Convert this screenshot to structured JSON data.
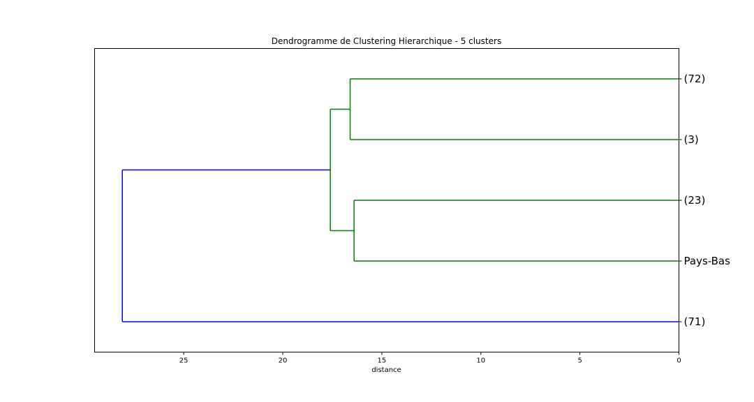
{
  "chart_data": {
    "type": "dendrogram",
    "title": "Dendrogramme de Clustering Hierarchique - 5 clusters",
    "xlabel": "distance",
    "ylabel": "",
    "orientation": "left",
    "xlim": [
      29.5,
      0
    ],
    "xticks": [
      25,
      20,
      15,
      10,
      5,
      0
    ],
    "grid": false,
    "leaves": [
      "(72)",
      "(3)",
      "(23)",
      "Pays-Bas",
      "(71)"
    ],
    "merges": [
      {
        "left": "(72)",
        "right": "(3)",
        "distance": 16.6,
        "color": "#008000"
      },
      {
        "left": "(23)",
        "right": "Pays-Bas",
        "distance": 16.4,
        "color": "#008000"
      },
      {
        "left": "(72)+(3)",
        "right": "(23)+Pays-Bas",
        "distance": 17.6,
        "color": "#008000"
      },
      {
        "left": "green-cluster",
        "right": "(71)",
        "distance": 28.1,
        "color": "#0000ff"
      }
    ],
    "colors": {
      "cluster": "#008000",
      "above_threshold": "#0000ff"
    }
  }
}
